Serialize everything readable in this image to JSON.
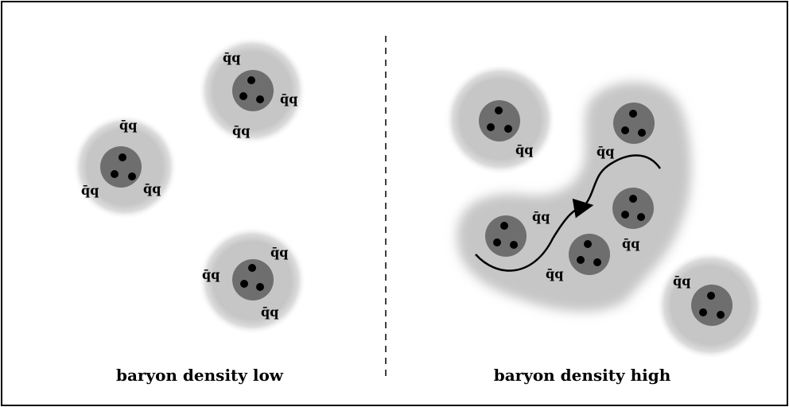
{
  "panels": [
    {
      "caption": "baryon density low"
    },
    {
      "caption": "baryon density high"
    }
  ],
  "antiquark_pair_label": "q̄q",
  "colors": {
    "cloud": "#c4c4c4",
    "core": "#6e6e6e",
    "quark": "#000000",
    "border": "#000000"
  }
}
